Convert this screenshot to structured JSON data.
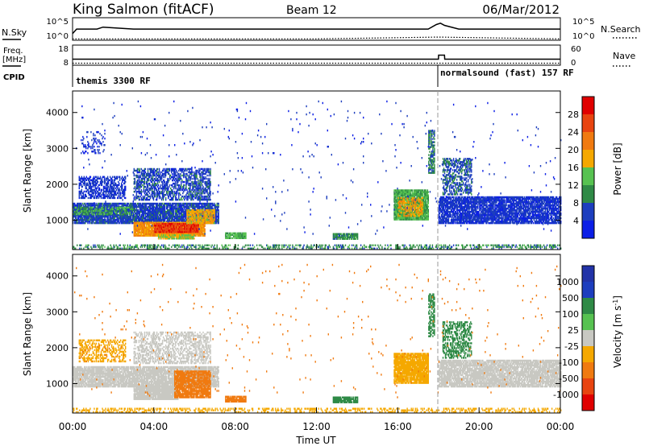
{
  "header": {
    "station": "King Salmon (fitACF)",
    "beam": "Beam 12",
    "date": "06/Mar/2012"
  },
  "side_labels": {
    "nsky": "N.Sky",
    "nsearch": "N.Search",
    "freq_line1": "Freq.",
    "freq_line2": "[MHz]",
    "nave": "Nave",
    "cpid": "CPID"
  },
  "strip_ticks": {
    "nsky_left": [
      "10^5",
      "10^0"
    ],
    "nsky_right": [
      "10^5",
      "10^0"
    ],
    "freq_left": [
      "18",
      "8"
    ],
    "freq_right": [
      "60",
      "0"
    ]
  },
  "cpid_programs": [
    {
      "label": "themis 3300 RF",
      "start_hour": 0
    },
    {
      "label": "normalsound (fast) 157 RF",
      "start_hour": 18
    }
  ],
  "colors": {
    "power": [
      "#0b1ee6",
      "#1d3ebe",
      "#2f8a46",
      "#57c251",
      "#f5a800",
      "#f07a10",
      "#e84410",
      "#e00000"
    ],
    "velocity": [
      "#e00000",
      "#e84410",
      "#f07a10",
      "#f5a800",
      "#c8c8c2",
      "#c8c8c2",
      "#57c251",
      "#2f8a46",
      "#1d3ebe",
      "#2233a8"
    ]
  },
  "chart_data": [
    {
      "type": "line",
      "title": "N.Sky / N.Search",
      "xlabel": "",
      "ylabel": "",
      "xlim": [
        0,
        24
      ],
      "y_scale": "log",
      "ylim": [
        1,
        100000
      ],
      "series": [
        {
          "name": "N.Sky",
          "style": "solid",
          "x": [
            0,
            0.2,
            1.2,
            1.5,
            3,
            6,
            12,
            17.5,
            17.9,
            18.1,
            18.3,
            19,
            24
          ],
          "y": [
            30,
            300,
            300,
            800,
            300,
            300,
            300,
            300,
            3000,
            6000,
            2000,
            300,
            300
          ]
        },
        {
          "name": "N.Search",
          "style": "dotted",
          "x": [
            0,
            2,
            6,
            12,
            17.9,
            18.1,
            24
          ],
          "y": [
            2,
            2,
            2,
            2,
            5,
            5,
            2
          ]
        }
      ]
    },
    {
      "type": "line",
      "title": "Freq. / Nave",
      "xlabel": "",
      "ylabel": "",
      "xlim": [
        0,
        24
      ],
      "ylim": [
        8,
        18
      ],
      "series": [
        {
          "name": "Freq.",
          "style": "solid",
          "x": [
            0,
            18,
            18.01,
            18.3,
            18.31,
            24
          ],
          "y": [
            11,
            11,
            13,
            13,
            11,
            11
          ]
        },
        {
          "name": "Nave",
          "style": "dotted",
          "x": [
            0,
            18,
            24
          ],
          "y": [
            9,
            9,
            9
          ]
        }
      ]
    },
    {
      "type": "heatmap",
      "title": "Power",
      "xlabel": "",
      "ylabel": "Slant Range [km]",
      "colorbar_label": "Power [dB]",
      "colorbar_ticks": [
        4,
        8,
        12,
        16,
        20,
        24,
        28
      ],
      "clim": [
        0,
        32
      ],
      "xlim": [
        0,
        24
      ],
      "ylim": [
        180,
        4600
      ],
      "yticks": [
        1000,
        2000,
        3000,
        4000
      ],
      "regions": [
        {
          "t0": 0.0,
          "t1": 7.2,
          "r0": 900,
          "r1": 1450,
          "value": 6,
          "density": 0.88
        },
        {
          "t0": 0.0,
          "t1": 3.0,
          "r0": 1150,
          "r1": 1350,
          "value": 12,
          "density": 0.5
        },
        {
          "t0": 0.3,
          "t1": 2.6,
          "r0": 1600,
          "r1": 2200,
          "value": 5,
          "density": 0.55
        },
        {
          "t0": 3.0,
          "t1": 6.8,
          "r0": 1550,
          "r1": 2450,
          "value": 6,
          "density": 0.55
        },
        {
          "t0": 3.0,
          "t1": 6.5,
          "r0": 550,
          "r1": 950,
          "value": 20,
          "density": 0.95
        },
        {
          "t0": 4.0,
          "t1": 6.2,
          "r0": 650,
          "r1": 900,
          "value": 27,
          "density": 0.85
        },
        {
          "t0": 5.6,
          "t1": 7.0,
          "r0": 900,
          "r1": 1300,
          "value": 18,
          "density": 0.8
        },
        {
          "t0": 4.2,
          "t1": 6.0,
          "r0": 470,
          "r1": 570,
          "value": 15,
          "density": 0.9
        },
        {
          "t0": 0.4,
          "t1": 1.6,
          "r0": 2850,
          "r1": 3450,
          "value": 5,
          "density": 0.18
        },
        {
          "t0": 7.5,
          "t1": 8.5,
          "r0": 480,
          "r1": 620,
          "value": 13,
          "density": 0.9
        },
        {
          "t0": 12.8,
          "t1": 14.0,
          "r0": 460,
          "r1": 620,
          "value": 10,
          "density": 0.85
        },
        {
          "t0": 15.8,
          "t1": 17.5,
          "r0": 1000,
          "r1": 1850,
          "value": 12,
          "density": 0.92
        },
        {
          "t0": 16.0,
          "t1": 17.2,
          "r0": 1100,
          "r1": 1600,
          "value": 19,
          "density": 0.5
        },
        {
          "t0": 17.5,
          "t1": 17.8,
          "r0": 2300,
          "r1": 3500,
          "value": 9,
          "density": 0.65
        },
        {
          "t0": 18.0,
          "t1": 24.0,
          "r0": 900,
          "r1": 1650,
          "value": 5,
          "density": 0.82
        },
        {
          "t0": 18.2,
          "t1": 19.6,
          "r0": 1700,
          "r1": 2700,
          "value": 7,
          "density": 0.5
        },
        {
          "t0": 0.0,
          "t1": 24.0,
          "r0": 190,
          "r1": 300,
          "value": 10,
          "density": 0.4
        },
        {
          "t0": 0.0,
          "t1": 24.0,
          "r0": 600,
          "r1": 4300,
          "value": 5,
          "density": 0.008
        }
      ]
    },
    {
      "type": "heatmap",
      "title": "Velocity",
      "xlabel": "Time UT",
      "ylabel": "Slant Range [km]",
      "colorbar_label": "Velocity [m s^-1]",
      "colorbar_ticks": [
        "1000",
        "500",
        "100",
        "25",
        "-25",
        "-100",
        "-500",
        "-1000"
      ],
      "xlim": [
        0,
        24
      ],
      "ylim": [
        180,
        4600
      ],
      "yticks": [
        1000,
        2000,
        3000,
        4000
      ],
      "xticks": [
        "00:00",
        "04:00",
        "08:00",
        "12:00",
        "16:00",
        "20:00",
        "00:00"
      ],
      "regions": [
        {
          "t0": 0.0,
          "t1": 7.2,
          "r0": 900,
          "r1": 1450,
          "value": 0,
          "density": 0.85
        },
        {
          "t0": 0.3,
          "t1": 2.6,
          "r0": 1600,
          "r1": 2200,
          "value": -80,
          "density": 0.45
        },
        {
          "t0": 3.0,
          "t1": 6.8,
          "r0": 1550,
          "r1": 2450,
          "value": 0,
          "density": 0.45
        },
        {
          "t0": 3.0,
          "t1": 5.2,
          "r0": 550,
          "r1": 950,
          "value": 0,
          "density": 0.95
        },
        {
          "t0": 5.0,
          "t1": 6.8,
          "r0": 600,
          "r1": 1350,
          "value": -300,
          "density": 0.85
        },
        {
          "t0": 7.5,
          "t1": 8.5,
          "r0": 480,
          "r1": 620,
          "value": -300,
          "density": 0.9
        },
        {
          "t0": 12.8,
          "t1": 14.0,
          "r0": 460,
          "r1": 620,
          "value": 150,
          "density": 0.85
        },
        {
          "t0": 15.8,
          "t1": 17.5,
          "r0": 1000,
          "r1": 1850,
          "value": -60,
          "density": 0.9
        },
        {
          "t0": 17.5,
          "t1": 17.8,
          "r0": 2300,
          "r1": 3500,
          "value": 150,
          "density": 0.6
        },
        {
          "t0": 18.0,
          "t1": 24.0,
          "r0": 900,
          "r1": 1650,
          "value": 0,
          "density": 0.82
        },
        {
          "t0": 18.2,
          "t1": 19.6,
          "r0": 1700,
          "r1": 2700,
          "value": 200,
          "density": 0.45
        },
        {
          "t0": 0.0,
          "t1": 24.0,
          "r0": 190,
          "r1": 300,
          "value": -60,
          "density": 0.35
        },
        {
          "t0": 0.0,
          "t1": 24.0,
          "r0": 600,
          "r1": 4300,
          "value": -200,
          "density": 0.008
        }
      ]
    }
  ]
}
